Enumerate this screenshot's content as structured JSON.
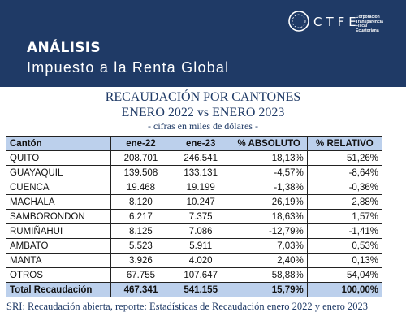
{
  "header": {
    "kicker": "ANÁLISIS",
    "subtitle": "Impuesto a la Renta Global",
    "logo_text": "CTFE",
    "logo_org_line1": "Corporación",
    "logo_org_line2": "Transparencia",
    "logo_org_line3": "Fiscal",
    "logo_org_line4": "Ecuatoriana"
  },
  "title": {
    "line1": "RECAUDACIÓN POR CANTONES",
    "line2": "ENERO 2022 vs ENERO 2023",
    "line3": "- cifras en miles de dólares -"
  },
  "table": {
    "headers": [
      "Cantón",
      "ene-22",
      "ene-23",
      "% ABSOLUTO",
      "% RELATIVO"
    ],
    "rows": [
      [
        "QUITO",
        "208.701",
        "246.541",
        "18,13%",
        "51,26%"
      ],
      [
        "GUAYAQUIL",
        "139.508",
        "133.131",
        "-4,57%",
        "-8,64%"
      ],
      [
        "CUENCA",
        "19.468",
        "19.199",
        "-1,38%",
        "-0,36%"
      ],
      [
        "MACHALA",
        "8.120",
        "10.247",
        "26,19%",
        "2,88%"
      ],
      [
        "SAMBORONDON",
        "6.217",
        "7.375",
        "18,63%",
        "1,57%"
      ],
      [
        "RUMIÑAHUI",
        "8.125",
        "7.086",
        "-12,79%",
        "-1,41%"
      ],
      [
        "AMBATO",
        "5.523",
        "5.911",
        "7,03%",
        "0,53%"
      ],
      [
        "MANTA",
        "3.926",
        "4.020",
        "2,40%",
        "0,13%"
      ],
      [
        "OTROS",
        "67.755",
        "107.647",
        "58,88%",
        "54,04%"
      ]
    ],
    "total": [
      "Total Recaudación",
      "467.341",
      "541.155",
      "15,79%",
      "100,00%"
    ]
  },
  "source": "SRI: Recaudación abierta, reporte: Estadísticas de Recaudación enero 2022 y enero 2023",
  "colors": {
    "header_bg": "#1f3a66",
    "table_header_bg": "#bcd0ec",
    "title_text": "#1f3a66"
  }
}
